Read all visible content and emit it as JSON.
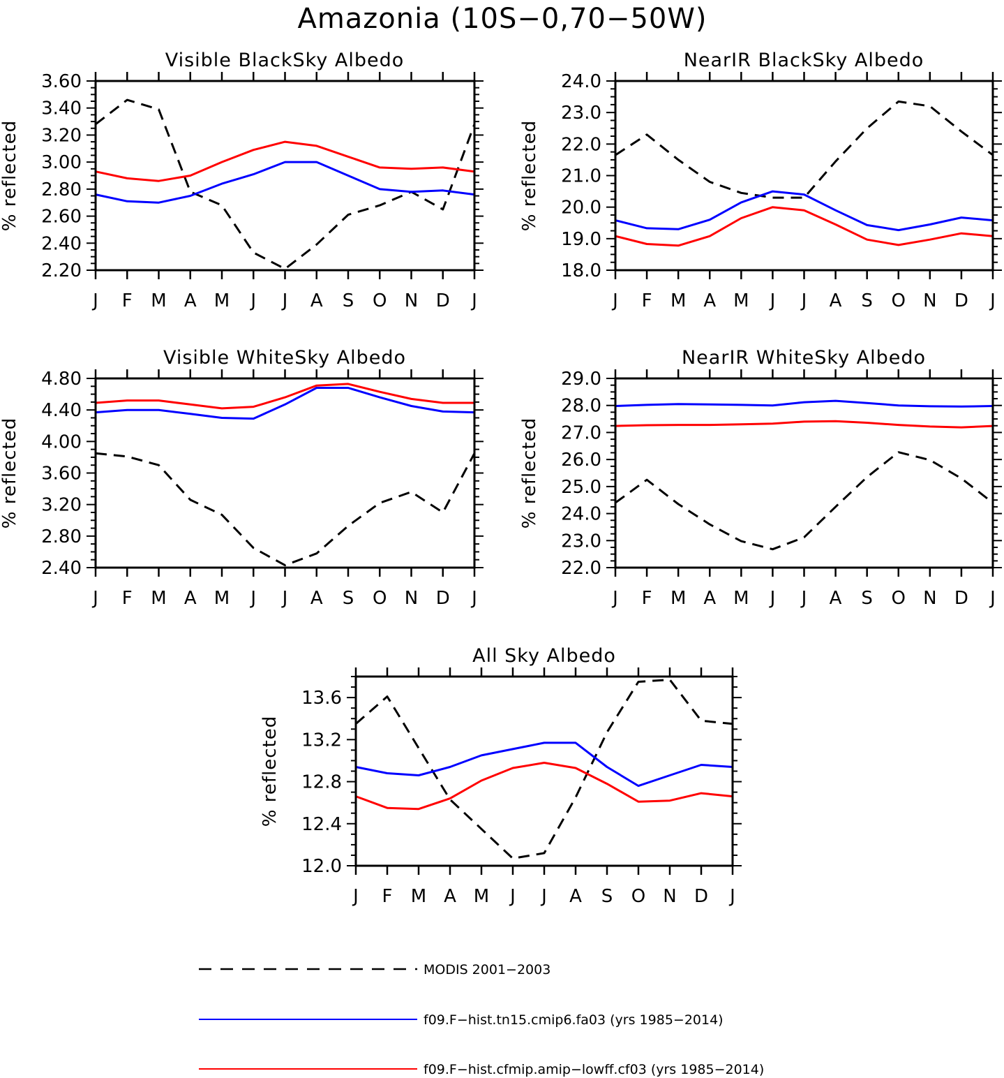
{
  "title": "Amazonia (10S−0,70−50W)",
  "colors": {
    "modis": "#000000",
    "blue": "#0000ff",
    "red": "#ff0000"
  },
  "legend": [
    {
      "key": "modis",
      "label": "MODIS 2001−2003",
      "color": "#000000",
      "dash": true
    },
    {
      "key": "blue",
      "label": "f09.F−hist.tn15.cmip6.fa03 (yrs 1985−2014)",
      "color": "#0000ff",
      "dash": false
    },
    {
      "key": "red",
      "label": "f09.F−hist.cfmip.amip−lowff.cf03 (yrs 1985−2014)",
      "color": "#ff0000",
      "dash": false
    }
  ],
  "chart_data": [
    {
      "type": "line",
      "title": "Visible BlackSky Albedo",
      "ylabel": "% reflected",
      "categories": [
        "J",
        "F",
        "M",
        "A",
        "M",
        "J",
        "J",
        "A",
        "S",
        "O",
        "N",
        "D",
        "J"
      ],
      "ylim": [
        2.2,
        3.6
      ],
      "yticks": [
        "2.20",
        "2.40",
        "2.60",
        "2.80",
        "3.00",
        "3.20",
        "3.40",
        "3.60"
      ],
      "series": [
        {
          "name": "MODIS 2001−2003",
          "key": "modis",
          "values": [
            3.28,
            3.46,
            3.39,
            2.78,
            2.68,
            2.33,
            2.21,
            2.39,
            2.61,
            2.68,
            2.78,
            2.65,
            3.28
          ]
        },
        {
          "name": "f09.F−hist.tn15.cmip6.fa03 (yrs 1985−2014)",
          "key": "blue",
          "values": [
            2.76,
            2.71,
            2.7,
            2.75,
            2.84,
            2.91,
            3.0,
            3.0,
            2.9,
            2.8,
            2.78,
            2.79,
            2.76
          ]
        },
        {
          "name": "f09.F−hist.cfmip.amip−lowff.cf03 (yrs 1985−2014)",
          "key": "red",
          "values": [
            2.93,
            2.88,
            2.86,
            2.9,
            3.0,
            3.09,
            3.15,
            3.12,
            3.04,
            2.96,
            2.95,
            2.96,
            2.93
          ]
        }
      ]
    },
    {
      "type": "line",
      "title": "NearIR BlackSky Albedo",
      "ylabel": "% reflected",
      "categories": [
        "J",
        "F",
        "M",
        "A",
        "M",
        "J",
        "J",
        "A",
        "S",
        "O",
        "N",
        "D",
        "J"
      ],
      "ylim": [
        18.0,
        24.0
      ],
      "yticks": [
        "18.0",
        "19.0",
        "20.0",
        "21.0",
        "22.0",
        "23.0",
        "24.0"
      ],
      "series": [
        {
          "name": "MODIS 2001−2003",
          "key": "modis",
          "values": [
            21.65,
            22.3,
            21.5,
            20.8,
            20.45,
            20.3,
            20.3,
            21.45,
            22.5,
            23.35,
            23.2,
            22.4,
            21.65
          ]
        },
        {
          "name": "f09.F−hist.tn15.cmip6.fa03 (yrs 1985−2014)",
          "key": "blue",
          "values": [
            19.58,
            19.33,
            19.3,
            19.6,
            20.15,
            20.5,
            20.4,
            19.9,
            19.43,
            19.27,
            19.45,
            19.67,
            19.58
          ]
        },
        {
          "name": "f09.F−hist.cfmip.amip−lowff.cf03 (yrs 1985−2014)",
          "key": "red",
          "values": [
            19.08,
            18.83,
            18.78,
            19.08,
            19.65,
            20.0,
            19.9,
            19.45,
            18.97,
            18.8,
            18.97,
            19.17,
            19.08
          ]
        }
      ]
    },
    {
      "type": "line",
      "title": "Visible WhiteSky Albedo",
      "ylabel": "% reflected",
      "categories": [
        "J",
        "F",
        "M",
        "A",
        "M",
        "J",
        "J",
        "A",
        "S",
        "O",
        "N",
        "D",
        "J"
      ],
      "ylim": [
        2.4,
        4.8
      ],
      "yticks": [
        "2.40",
        "2.80",
        "3.20",
        "3.60",
        "4.00",
        "4.40",
        "4.80"
      ],
      "series": [
        {
          "name": "MODIS 2001−2003",
          "key": "modis",
          "values": [
            3.85,
            3.81,
            3.7,
            3.26,
            3.07,
            2.65,
            2.43,
            2.58,
            2.93,
            3.22,
            3.36,
            3.1,
            3.85
          ]
        },
        {
          "name": "f09.F−hist.tn15.cmip6.fa03 (yrs 1985−2014)",
          "key": "blue",
          "values": [
            4.37,
            4.4,
            4.4,
            4.35,
            4.3,
            4.29,
            4.47,
            4.68,
            4.68,
            4.56,
            4.45,
            4.38,
            4.37
          ]
        },
        {
          "name": "f09.F−hist.cfmip.amip−lowff.cf03 (yrs 1985−2014)",
          "key": "red",
          "values": [
            4.49,
            4.52,
            4.52,
            4.47,
            4.42,
            4.44,
            4.56,
            4.71,
            4.73,
            4.63,
            4.54,
            4.49,
            4.49
          ]
        }
      ]
    },
    {
      "type": "line",
      "title": "NearIR WhiteSky Albedo",
      "ylabel": "% reflected",
      "categories": [
        "J",
        "F",
        "M",
        "A",
        "M",
        "J",
        "J",
        "A",
        "S",
        "O",
        "N",
        "D",
        "J"
      ],
      "ylim": [
        22.0,
        29.0
      ],
      "yticks": [
        "22.0",
        "23.0",
        "24.0",
        "25.0",
        "26.0",
        "27.0",
        "28.0",
        "29.0"
      ],
      "series": [
        {
          "name": "MODIS 2001−2003",
          "key": "modis",
          "values": [
            24.4,
            25.25,
            24.35,
            23.6,
            22.98,
            22.68,
            23.12,
            24.25,
            25.35,
            26.27,
            25.98,
            25.3,
            24.4
          ]
        },
        {
          "name": "f09.F−hist.tn15.cmip6.fa03 (yrs 1985−2014)",
          "key": "blue",
          "values": [
            27.98,
            28.02,
            28.05,
            28.04,
            28.02,
            28.0,
            28.12,
            28.17,
            28.09,
            28.0,
            27.97,
            27.96,
            27.98
          ]
        },
        {
          "name": "f09.F−hist.cfmip.amip−lowff.cf03 (yrs 1985−2014)",
          "key": "red",
          "values": [
            27.24,
            27.27,
            27.28,
            27.28,
            27.3,
            27.33,
            27.4,
            27.42,
            27.36,
            27.28,
            27.22,
            27.19,
            27.24
          ]
        }
      ]
    },
    {
      "type": "line",
      "title": "All Sky Albedo",
      "ylabel": "% reflected",
      "categories": [
        "J",
        "F",
        "M",
        "A",
        "M",
        "J",
        "J",
        "A",
        "S",
        "O",
        "N",
        "D",
        "J"
      ],
      "ylim": [
        12.0,
        13.8
      ],
      "yticks": [
        "12.0",
        "12.4",
        "12.8",
        "13.2",
        "13.6"
      ],
      "series": [
        {
          "name": "MODIS 2001−2003",
          "key": "modis",
          "values": [
            13.35,
            13.61,
            13.12,
            12.63,
            12.35,
            12.07,
            12.12,
            12.65,
            13.27,
            13.75,
            13.77,
            13.38,
            13.35
          ]
        },
        {
          "name": "f09.F−hist.tn15.cmip6.fa03 (yrs 1985−2014)",
          "key": "blue",
          "values": [
            12.94,
            12.88,
            12.86,
            12.94,
            13.05,
            13.11,
            13.17,
            13.17,
            12.94,
            12.76,
            12.86,
            12.96,
            12.94
          ]
        },
        {
          "name": "f09.F−hist.cfmip.amip−lowff.cf03 (yrs 1985−2014)",
          "key": "red",
          "values": [
            12.66,
            12.55,
            12.54,
            12.64,
            12.81,
            12.93,
            12.98,
            12.93,
            12.78,
            12.61,
            12.62,
            12.69,
            12.66
          ]
        }
      ]
    }
  ]
}
